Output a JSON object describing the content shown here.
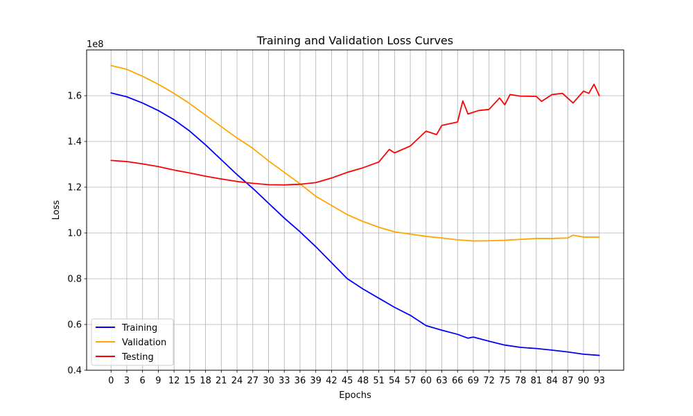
{
  "chart_data": {
    "type": "line",
    "title": "Training and Validation Loss Curves",
    "xlabel": "Epochs",
    "ylabel": "Loss",
    "y_offset_label": "1e8",
    "xlim": [
      -4.65,
      97.65
    ],
    "ylim": [
      0.4,
      1.8
    ],
    "y_ticks": [
      0.4,
      0.6,
      0.8,
      1.0,
      1.2,
      1.4,
      1.6
    ],
    "y_tick_labels": [
      "0.4",
      "0.6",
      "0.8",
      "1.0",
      "1.2",
      "1.4",
      "1.6"
    ],
    "x_ticks": [
      0,
      3,
      6,
      9,
      12,
      15,
      18,
      21,
      24,
      27,
      30,
      33,
      36,
      39,
      42,
      45,
      48,
      51,
      54,
      57,
      60,
      63,
      66,
      69,
      72,
      75,
      78,
      81,
      84,
      87,
      90,
      93
    ],
    "grid": true,
    "legend_position": "lower-left",
    "series": [
      {
        "name": "Training",
        "color": "#0000ff",
        "points": [
          [
            0,
            1.612
          ],
          [
            3,
            1.595
          ],
          [
            6,
            1.568
          ],
          [
            9,
            1.535
          ],
          [
            12,
            1.495
          ],
          [
            15,
            1.445
          ],
          [
            18,
            1.385
          ],
          [
            21,
            1.32
          ],
          [
            24,
            1.255
          ],
          [
            27,
            1.195
          ],
          [
            30,
            1.13
          ],
          [
            33,
            1.065
          ],
          [
            36,
            1.005
          ],
          [
            39,
            0.94
          ],
          [
            42,
            0.87
          ],
          [
            45,
            0.8
          ],
          [
            48,
            0.755
          ],
          [
            51,
            0.715
          ],
          [
            54,
            0.675
          ],
          [
            57,
            0.64
          ],
          [
            60,
            0.595
          ],
          [
            63,
            0.575
          ],
          [
            66,
            0.557
          ],
          [
            68,
            0.54
          ],
          [
            69,
            0.545
          ],
          [
            72,
            0.527
          ],
          [
            75,
            0.51
          ],
          [
            78,
            0.5
          ],
          [
            81,
            0.495
          ],
          [
            84,
            0.488
          ],
          [
            87,
            0.48
          ],
          [
            90,
            0.47
          ],
          [
            93,
            0.465
          ]
        ]
      },
      {
        "name": "Validation",
        "color": "#ffa500",
        "points": [
          [
            0,
            1.732
          ],
          [
            3,
            1.715
          ],
          [
            6,
            1.685
          ],
          [
            9,
            1.65
          ],
          [
            12,
            1.61
          ],
          [
            15,
            1.565
          ],
          [
            18,
            1.515
          ],
          [
            21,
            1.465
          ],
          [
            24,
            1.415
          ],
          [
            27,
            1.37
          ],
          [
            30,
            1.315
          ],
          [
            33,
            1.265
          ],
          [
            36,
            1.215
          ],
          [
            39,
            1.16
          ],
          [
            42,
            1.12
          ],
          [
            45,
            1.08
          ],
          [
            48,
            1.05
          ],
          [
            51,
            1.025
          ],
          [
            54,
            1.005
          ],
          [
            57,
            0.995
          ],
          [
            60,
            0.985
          ],
          [
            63,
            0.978
          ],
          [
            66,
            0.97
          ],
          [
            69,
            0.965
          ],
          [
            72,
            0.966
          ],
          [
            75,
            0.968
          ],
          [
            78,
            0.972
          ],
          [
            81,
            0.976
          ],
          [
            84,
            0.976
          ],
          [
            87,
            0.978
          ],
          [
            88,
            0.99
          ],
          [
            90,
            0.982
          ],
          [
            93,
            0.982
          ]
        ]
      },
      {
        "name": "Testing",
        "color": "#ff0000",
        "points": [
          [
            0,
            1.317
          ],
          [
            3,
            1.312
          ],
          [
            6,
            1.302
          ],
          [
            9,
            1.29
          ],
          [
            12,
            1.275
          ],
          [
            15,
            1.262
          ],
          [
            18,
            1.248
          ],
          [
            21,
            1.236
          ],
          [
            24,
            1.225
          ],
          [
            27,
            1.217
          ],
          [
            30,
            1.211
          ],
          [
            33,
            1.21
          ],
          [
            36,
            1.213
          ],
          [
            39,
            1.22
          ],
          [
            42,
            1.24
          ],
          [
            45,
            1.265
          ],
          [
            48,
            1.285
          ],
          [
            51,
            1.31
          ],
          [
            53,
            1.365
          ],
          [
            54,
            1.35
          ],
          [
            57,
            1.38
          ],
          [
            60,
            1.445
          ],
          [
            62,
            1.43
          ],
          [
            63,
            1.47
          ],
          [
            66,
            1.485
          ],
          [
            67,
            1.577
          ],
          [
            68,
            1.52
          ],
          [
            70,
            1.535
          ],
          [
            72,
            1.54
          ],
          [
            74,
            1.59
          ],
          [
            75,
            1.56
          ],
          [
            76,
            1.605
          ],
          [
            78,
            1.598
          ],
          [
            81,
            1.597
          ],
          [
            82,
            1.575
          ],
          [
            84,
            1.605
          ],
          [
            86,
            1.61
          ],
          [
            88,
            1.568
          ],
          [
            90,
            1.62
          ],
          [
            91,
            1.61
          ],
          [
            92,
            1.65
          ],
          [
            93,
            1.6
          ]
        ]
      }
    ]
  }
}
